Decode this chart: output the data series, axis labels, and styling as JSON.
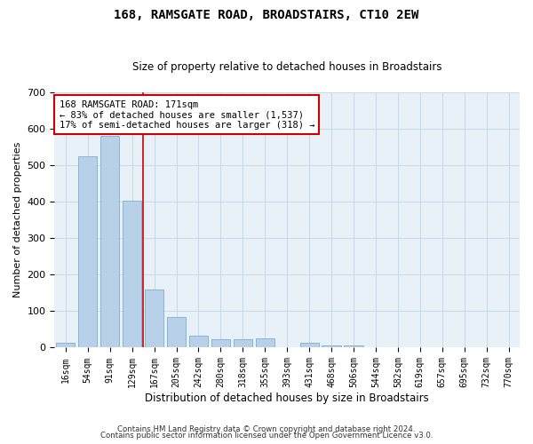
{
  "title": "168, RAMSGATE ROAD, BROADSTAIRS, CT10 2EW",
  "subtitle": "Size of property relative to detached houses in Broadstairs",
  "xlabel": "Distribution of detached houses by size in Broadstairs",
  "ylabel": "Number of detached properties",
  "categories": [
    "16sqm",
    "54sqm",
    "91sqm",
    "129sqm",
    "167sqm",
    "205sqm",
    "242sqm",
    "280sqm",
    "318sqm",
    "355sqm",
    "393sqm",
    "431sqm",
    "468sqm",
    "506sqm",
    "544sqm",
    "582sqm",
    "619sqm",
    "657sqm",
    "695sqm",
    "732sqm",
    "770sqm"
  ],
  "values": [
    14,
    525,
    580,
    403,
    160,
    85,
    32,
    22,
    22,
    25,
    0,
    13,
    7,
    5,
    0,
    0,
    0,
    0,
    0,
    0,
    0
  ],
  "bar_color": "#b8d0e8",
  "bar_edge_color": "#7bafd4",
  "grid_color": "#c8d8eb",
  "background_color": "#e8f0f8",
  "ref_line_x": 3.5,
  "ref_line_color": "#cc0000",
  "annotation_text": "168 RAMSGATE ROAD: 171sqm\n← 83% of detached houses are smaller (1,537)\n17% of semi-detached houses are larger (318) →",
  "annotation_box_color": "#ffffff",
  "annotation_box_edge": "#cc0000",
  "ylim": [
    0,
    700
  ],
  "yticks": [
    0,
    100,
    200,
    300,
    400,
    500,
    600,
    700
  ],
  "title_fontsize": 10,
  "subtitle_fontsize": 8.5,
  "footer1": "Contains HM Land Registry data © Crown copyright and database right 2024.",
  "footer2": "Contains public sector information licensed under the Open Government Licence v3.0."
}
